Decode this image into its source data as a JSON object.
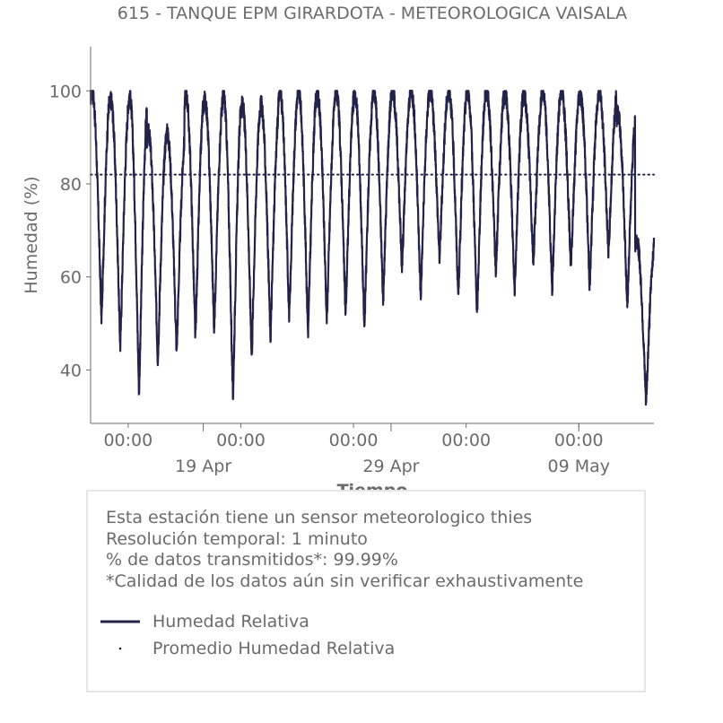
{
  "chart_data": {
    "type": "line",
    "title": "615 - TANQUE EPM GIRARDOTA - METEOROLOGICA VAISALA",
    "xlabel": "Tiempo",
    "ylabel": "Humedad (%)",
    "ylim": [
      28.5,
      109.5
    ],
    "yticks": [
      40,
      60,
      80,
      100
    ],
    "x_start": "2025-04-13T00:00",
    "x_end": "2025-05-13T00:00",
    "xticks_minor": [
      {
        "x": "2025-04-15T00:00",
        "label": "00:00"
      },
      {
        "x": "2025-04-21T00:00",
        "label": "00:00"
      },
      {
        "x": "2025-04-27T00:00",
        "label": "00:00"
      },
      {
        "x": "2025-05-03T00:00",
        "label": "00:00"
      },
      {
        "x": "2025-05-09T00:00",
        "label": "00:00"
      }
    ],
    "xticks_major": [
      {
        "x": "2025-04-19T00:00",
        "label": "19 Apr"
      },
      {
        "x": "2025-04-29T00:00",
        "label": "29 Apr"
      },
      {
        "x": "2025-05-09T00:00",
        "label": "09 May"
      }
    ],
    "grid": false,
    "series": [
      {
        "name": "Humedad Relativa",
        "color": "#23234a",
        "style": "solid",
        "daily_min": [
          51,
          45,
          35,
          42,
          44,
          47,
          49,
          34,
          43,
          47,
          51,
          48,
          51,
          52,
          49,
          55,
          62,
          56,
          64,
          56,
          52,
          61,
          57,
          63,
          57,
          62,
          58,
          65,
          54,
          33
        ],
        "daily_max": [
          100,
          98,
          99,
          91,
          91,
          99,
          98,
          99,
          97,
          97,
          100,
          100,
          99,
          100,
          99,
          100,
          100,
          100,
          100,
          100,
          100,
          100,
          99,
          99,
          100,
          100,
          99,
          100,
          95,
          68
        ]
      },
      {
        "name": "Promedio Humedad Relativa",
        "color": "#23234a",
        "style": "dotted",
        "value": 82.0
      }
    ],
    "legend_placement": "below",
    "notes": [
      "Esta estación tiene un sensor meteorologico thies",
      "Resolución temporal: 1 minuto",
      "% de datos transmitidos*: 99.99%",
      "*Calidad de los datos aún sin verificar exhaustivamente"
    ]
  }
}
